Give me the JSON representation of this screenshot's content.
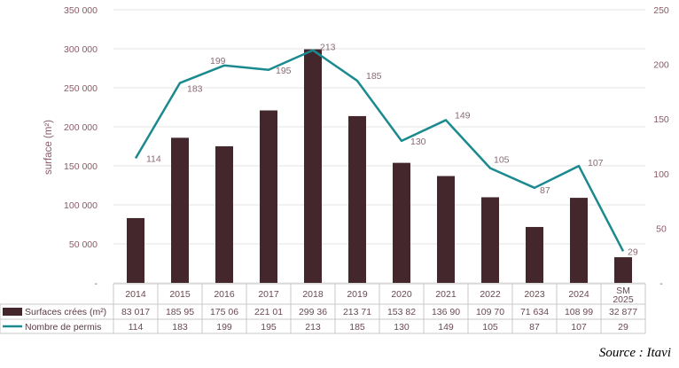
{
  "chart_data": {
    "type": "bar+line",
    "categories": [
      "2014",
      "2015",
      "2016",
      "2017",
      "2018",
      "2019",
      "2020",
      "2021",
      "2022",
      "2023",
      "2024",
      "SM 2025"
    ],
    "series": [
      {
        "name": "Surfaces crées (m²)",
        "type": "bar",
        "axis": "left",
        "color": "#43272d",
        "values": [
          83017,
          185950,
          175060,
          221010,
          299360,
          213710,
          153820,
          136900,
          109700,
          71634,
          108990,
          32877
        ],
        "table_labels": [
          "83 017",
          "185 95",
          "175 06",
          "221 01",
          "299 36",
          "213 71",
          "153 82",
          "136 90",
          "109 70",
          "71 634",
          "108 99",
          "32 877"
        ]
      },
      {
        "name": "Nombre de permis",
        "type": "line",
        "axis": "right",
        "color": "#1b8a8f",
        "values": [
          114,
          183,
          199,
          195,
          213,
          185,
          130,
          149,
          105,
          87,
          107,
          29
        ],
        "table_labels": [
          "114",
          "183",
          "199",
          "195",
          "213",
          "185",
          "130",
          "149",
          "105",
          "87",
          "107",
          "29"
        ]
      }
    ],
    "ylabel": "surface (m²)",
    "ylim_left": [
      0,
      350000
    ],
    "ylim_right": [
      0,
      250
    ],
    "left_ticks": [
      "350 000",
      "300 000",
      "250 000",
      "200 000",
      "150 000",
      "100 000",
      "50 000",
      "-"
    ],
    "right_ticks": [
      "250",
      "200",
      "150",
      "100",
      "50",
      "-"
    ],
    "grid": true,
    "source": "Source : Itavi"
  }
}
